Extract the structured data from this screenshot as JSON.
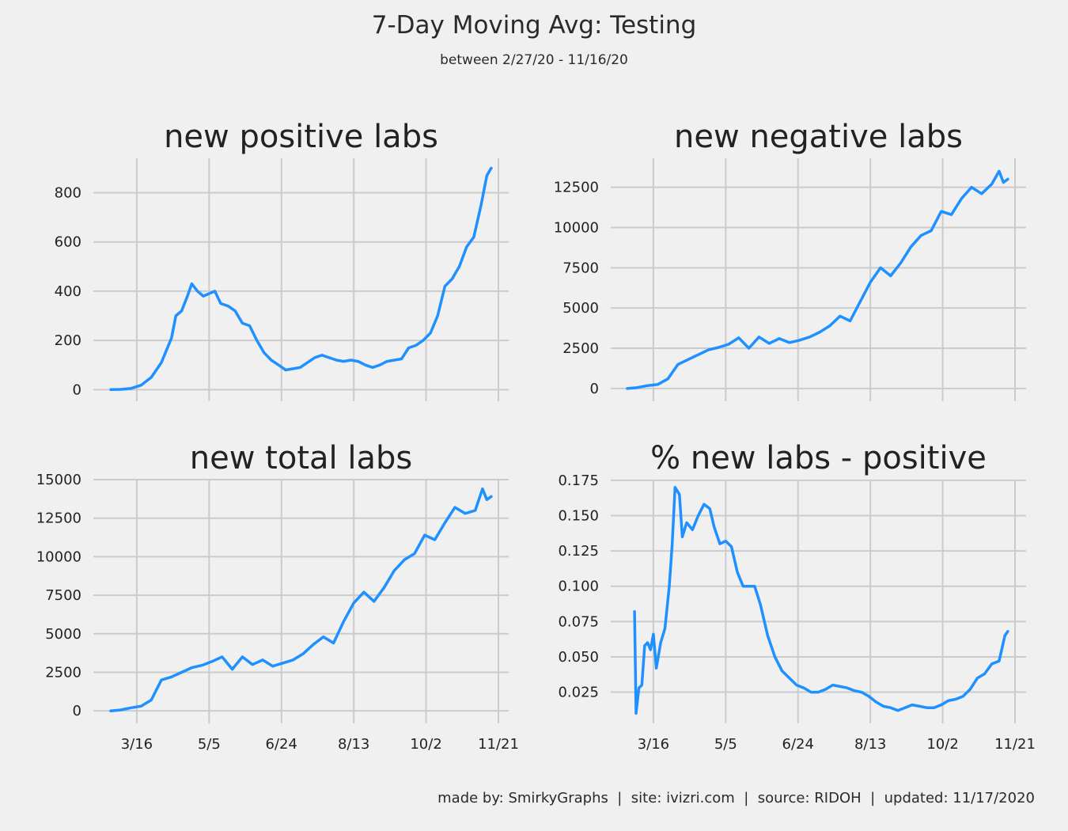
{
  "title": "7-Day Moving Avg: Testing",
  "subtitle": "between 2/27/20 - 11/16/20",
  "footer": "made by: SmirkyGraphs  |  site: ivizri.com  |  source: RIDOH  |  updated: 11/17/2020",
  "line_color": "#1e90ff",
  "chart_data": [
    {
      "type": "line",
      "title": "new positive labs",
      "x_ticks": [
        "3/16",
        "5/5",
        "6/24",
        "8/13",
        "10/2",
        "11/21"
      ],
      "x_ticks_visible": false,
      "y_ticks": [
        "0",
        "200",
        "400",
        "600",
        "800"
      ],
      "ylim": [
        -15,
        940
      ],
      "grid": true,
      "x": [
        "2/27/20",
        "3/5/20",
        "3/12/20",
        "3/19/20",
        "3/26/20",
        "4/2/20",
        "4/9/20",
        "4/12/20",
        "4/16/20",
        "4/20/20",
        "4/23/20",
        "4/27/20",
        "5/1/20",
        "5/5/20",
        "5/9/20",
        "5/13/20",
        "5/18/20",
        "5/23/20",
        "5/28/20",
        "6/2/20",
        "6/7/20",
        "6/12/20",
        "6/17/20",
        "6/22/20",
        "6/27/20",
        "7/2/20",
        "7/7/20",
        "7/12/20",
        "7/17/20",
        "7/22/20",
        "7/27/20",
        "8/1/20",
        "8/6/20",
        "8/11/20",
        "8/16/20",
        "8/21/20",
        "8/26/20",
        "8/31/20",
        "9/5/20",
        "9/10/20",
        "9/15/20",
        "9/20/20",
        "9/25/20",
        "9/30/20",
        "10/5/20",
        "10/10/20",
        "10/15/20",
        "10/20/20",
        "10/25/20",
        "10/30/20",
        "11/4/20",
        "11/9/20",
        "11/13/20",
        "11/16/20"
      ],
      "series": [
        {
          "values": [
            0,
            1,
            5,
            18,
            50,
            110,
            210,
            300,
            320,
            380,
            430,
            400,
            380,
            390,
            400,
            350,
            340,
            320,
            270,
            260,
            200,
            150,
            120,
            100,
            80,
            85,
            90,
            110,
            130,
            140,
            130,
            120,
            115,
            120,
            115,
            100,
            90,
            100,
            115,
            120,
            125,
            170,
            180,
            200,
            230,
            300,
            420,
            450,
            500,
            580,
            620,
            750,
            870,
            900
          ]
        }
      ]
    },
    {
      "type": "line",
      "title": "new negative labs",
      "x_ticks": [
        "3/16",
        "5/5",
        "6/24",
        "8/13",
        "10/2",
        "11/21"
      ],
      "x_ticks_visible": false,
      "y_ticks": [
        "0",
        "2500",
        "5000",
        "7500",
        "10000",
        "12500"
      ],
      "ylim": [
        -300,
        14300
      ],
      "grid": true,
      "x": [
        "2/27/20",
        "3/5/20",
        "3/12/20",
        "3/19/20",
        "3/26/20",
        "4/2/20",
        "4/9/20",
        "4/16/20",
        "4/23/20",
        "4/30/20",
        "5/7/20",
        "5/14/20",
        "5/21/20",
        "5/28/20",
        "6/4/20",
        "6/11/20",
        "6/18/20",
        "6/25/20",
        "7/2/20",
        "7/9/20",
        "7/16/20",
        "7/23/20",
        "7/30/20",
        "8/6/20",
        "8/13/20",
        "8/20/20",
        "8/27/20",
        "9/3/20",
        "9/10/20",
        "9/17/20",
        "9/24/20",
        "10/1/20",
        "10/8/20",
        "10/15/20",
        "10/22/20",
        "10/29/20",
        "11/5/20",
        "11/10/20",
        "11/13/20",
        "11/16/20"
      ],
      "series": [
        {
          "values": [
            0,
            60,
            180,
            250,
            600,
            1500,
            1800,
            2100,
            2400,
            2550,
            2750,
            3150,
            2500,
            3200,
            2800,
            3100,
            2850,
            3000,
            3200,
            3500,
            3900,
            4500,
            4200,
            5400,
            6600,
            7500,
            7000,
            7800,
            8800,
            9500,
            9800,
            11000,
            10800,
            11800,
            12500,
            12100,
            12700,
            13500,
            12800,
            13000
          ]
        }
      ]
    },
    {
      "type": "line",
      "title": "new total labs",
      "x_ticks": [
        "3/16",
        "5/5",
        "6/24",
        "8/13",
        "10/2",
        "11/21"
      ],
      "x_ticks_visible": true,
      "y_ticks": [
        "0",
        "2500",
        "5000",
        "7500",
        "10000",
        "12500",
        "15000"
      ],
      "ylim": [
        -300,
        15000
      ],
      "grid": true,
      "x": [
        "2/27/20",
        "3/5/20",
        "3/12/20",
        "3/19/20",
        "3/26/20",
        "4/2/20",
        "4/9/20",
        "4/16/20",
        "4/23/20",
        "4/30/20",
        "5/7/20",
        "5/14/20",
        "5/21/20",
        "5/28/20",
        "6/4/20",
        "6/11/20",
        "6/18/20",
        "6/25/20",
        "7/2/20",
        "7/9/20",
        "7/16/20",
        "7/23/20",
        "7/30/20",
        "8/6/20",
        "8/13/20",
        "8/20/20",
        "8/27/20",
        "9/3/20",
        "9/10/20",
        "9/17/20",
        "9/24/20",
        "10/1/20",
        "10/8/20",
        "10/15/20",
        "10/22/20",
        "10/29/20",
        "11/5/20",
        "11/10/20",
        "11/13/20",
        "11/16/20"
      ],
      "series": [
        {
          "values": [
            0,
            60,
            200,
            300,
            700,
            2000,
            2200,
            2500,
            2800,
            2950,
            3200,
            3500,
            2700,
            3500,
            3000,
            3300,
            2900,
            3100,
            3300,
            3700,
            4300,
            4800,
            4400,
            5800,
            7000,
            7700,
            7100,
            8000,
            9100,
            9800,
            10200,
            11400,
            11100,
            12200,
            13200,
            12800,
            13000,
            14400,
            13700,
            13900
          ]
        }
      ]
    },
    {
      "type": "line",
      "title": "% new labs - positive",
      "x_ticks": [
        "3/16",
        "5/5",
        "6/24",
        "8/13",
        "10/2",
        "11/21"
      ],
      "x_ticks_visible": true,
      "y_ticks": [
        "0.025",
        "0.050",
        "0.075",
        "0.100",
        "0.125",
        "0.150",
        "0.175"
      ],
      "ylim": [
        0.0085,
        0.1755
      ],
      "grid": true,
      "x": [
        "3/3/20",
        "3/4/20",
        "3/6/20",
        "3/8/20",
        "3/10/20",
        "3/12/20",
        "3/14/20",
        "3/16/20",
        "3/18/20",
        "3/21/20",
        "3/24/20",
        "3/27/20",
        "3/29/20",
        "3/31/20",
        "4/3/20",
        "4/5/20",
        "4/8/20",
        "4/12/20",
        "4/16/20",
        "4/20/20",
        "4/24/20",
        "4/27/20",
        "5/1/20",
        "5/5/20",
        "5/9/20",
        "5/13/20",
        "5/17/20",
        "5/21/20",
        "5/25/20",
        "5/29/20",
        "6/3/20",
        "6/8/20",
        "6/13/20",
        "6/18/20",
        "6/23/20",
        "6/28/20",
        "7/3/20",
        "7/8/20",
        "7/13/20",
        "7/18/20",
        "7/23/20",
        "7/28/20",
        "8/2/20",
        "8/7/20",
        "8/12/20",
        "8/17/20",
        "8/22/20",
        "8/27/20",
        "9/1/20",
        "9/6/20",
        "9/11/20",
        "9/16/20",
        "9/21/20",
        "9/26/20",
        "10/1/20",
        "10/6/20",
        "10/11/20",
        "10/16/20",
        "10/21/20",
        "10/26/20",
        "10/31/20",
        "11/5/20",
        "11/10/20",
        "11/14/20",
        "11/16/20"
      ],
      "series": [
        {
          "values": [
            0.082,
            0.01,
            0.028,
            0.03,
            0.058,
            0.06,
            0.055,
            0.066,
            0.042,
            0.06,
            0.07,
            0.1,
            0.13,
            0.17,
            0.165,
            0.135,
            0.145,
            0.14,
            0.15,
            0.158,
            0.155,
            0.142,
            0.13,
            0.132,
            0.128,
            0.11,
            0.1,
            0.1,
            0.1,
            0.087,
            0.065,
            0.05,
            0.04,
            0.035,
            0.03,
            0.028,
            0.025,
            0.025,
            0.027,
            0.03,
            0.029,
            0.028,
            0.026,
            0.025,
            0.022,
            0.018,
            0.015,
            0.014,
            0.012,
            0.014,
            0.016,
            0.015,
            0.014,
            0.014,
            0.016,
            0.019,
            0.02,
            0.022,
            0.027,
            0.035,
            0.038,
            0.045,
            0.047,
            0.065,
            0.068
          ]
        }
      ]
    }
  ]
}
